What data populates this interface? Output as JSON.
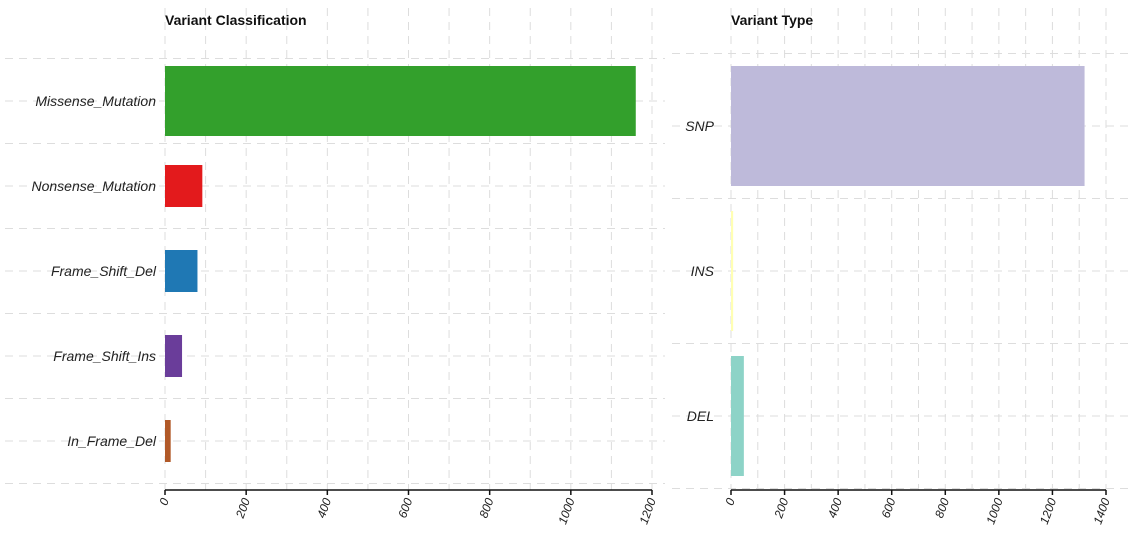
{
  "chart_data": [
    {
      "type": "bar",
      "orientation": "horizontal",
      "title": "Variant Classification",
      "xlabel": "",
      "ylabel": "",
      "categories": [
        "Missense_Mutation",
        "Nonsense_Mutation",
        "Frame_Shift_Del",
        "Frame_Shift_Ins",
        "In_Frame_Del"
      ],
      "values": [
        1160,
        92,
        80,
        42,
        14
      ],
      "colors": [
        "#33a02c",
        "#e31a1c",
        "#1f78b4",
        "#6a3d9a",
        "#b15928"
      ],
      "xlim": [
        0,
        1200
      ],
      "ticks": [
        0,
        200,
        400,
        600,
        800,
        1000,
        1200
      ],
      "tick_labels": [
        "0",
        "200",
        "400",
        "600",
        "800",
        "1000",
        "1200"
      ],
      "grid": true
    },
    {
      "type": "bar",
      "orientation": "horizontal",
      "title": "Variant Type",
      "xlabel": "",
      "ylabel": "",
      "categories": [
        "SNP",
        "INS",
        "DEL"
      ],
      "values": [
        1320,
        8,
        48
      ],
      "colors": [
        "#bebada",
        "#ffffb3",
        "#8dd3c7"
      ],
      "xlim": [
        0,
        1400
      ],
      "ticks": [
        0,
        200,
        400,
        600,
        800,
        1000,
        1200,
        1400
      ],
      "tick_labels": [
        "0",
        "200",
        "400",
        "600",
        "800",
        "1000",
        "1200",
        "1400"
      ],
      "grid": true
    }
  ]
}
